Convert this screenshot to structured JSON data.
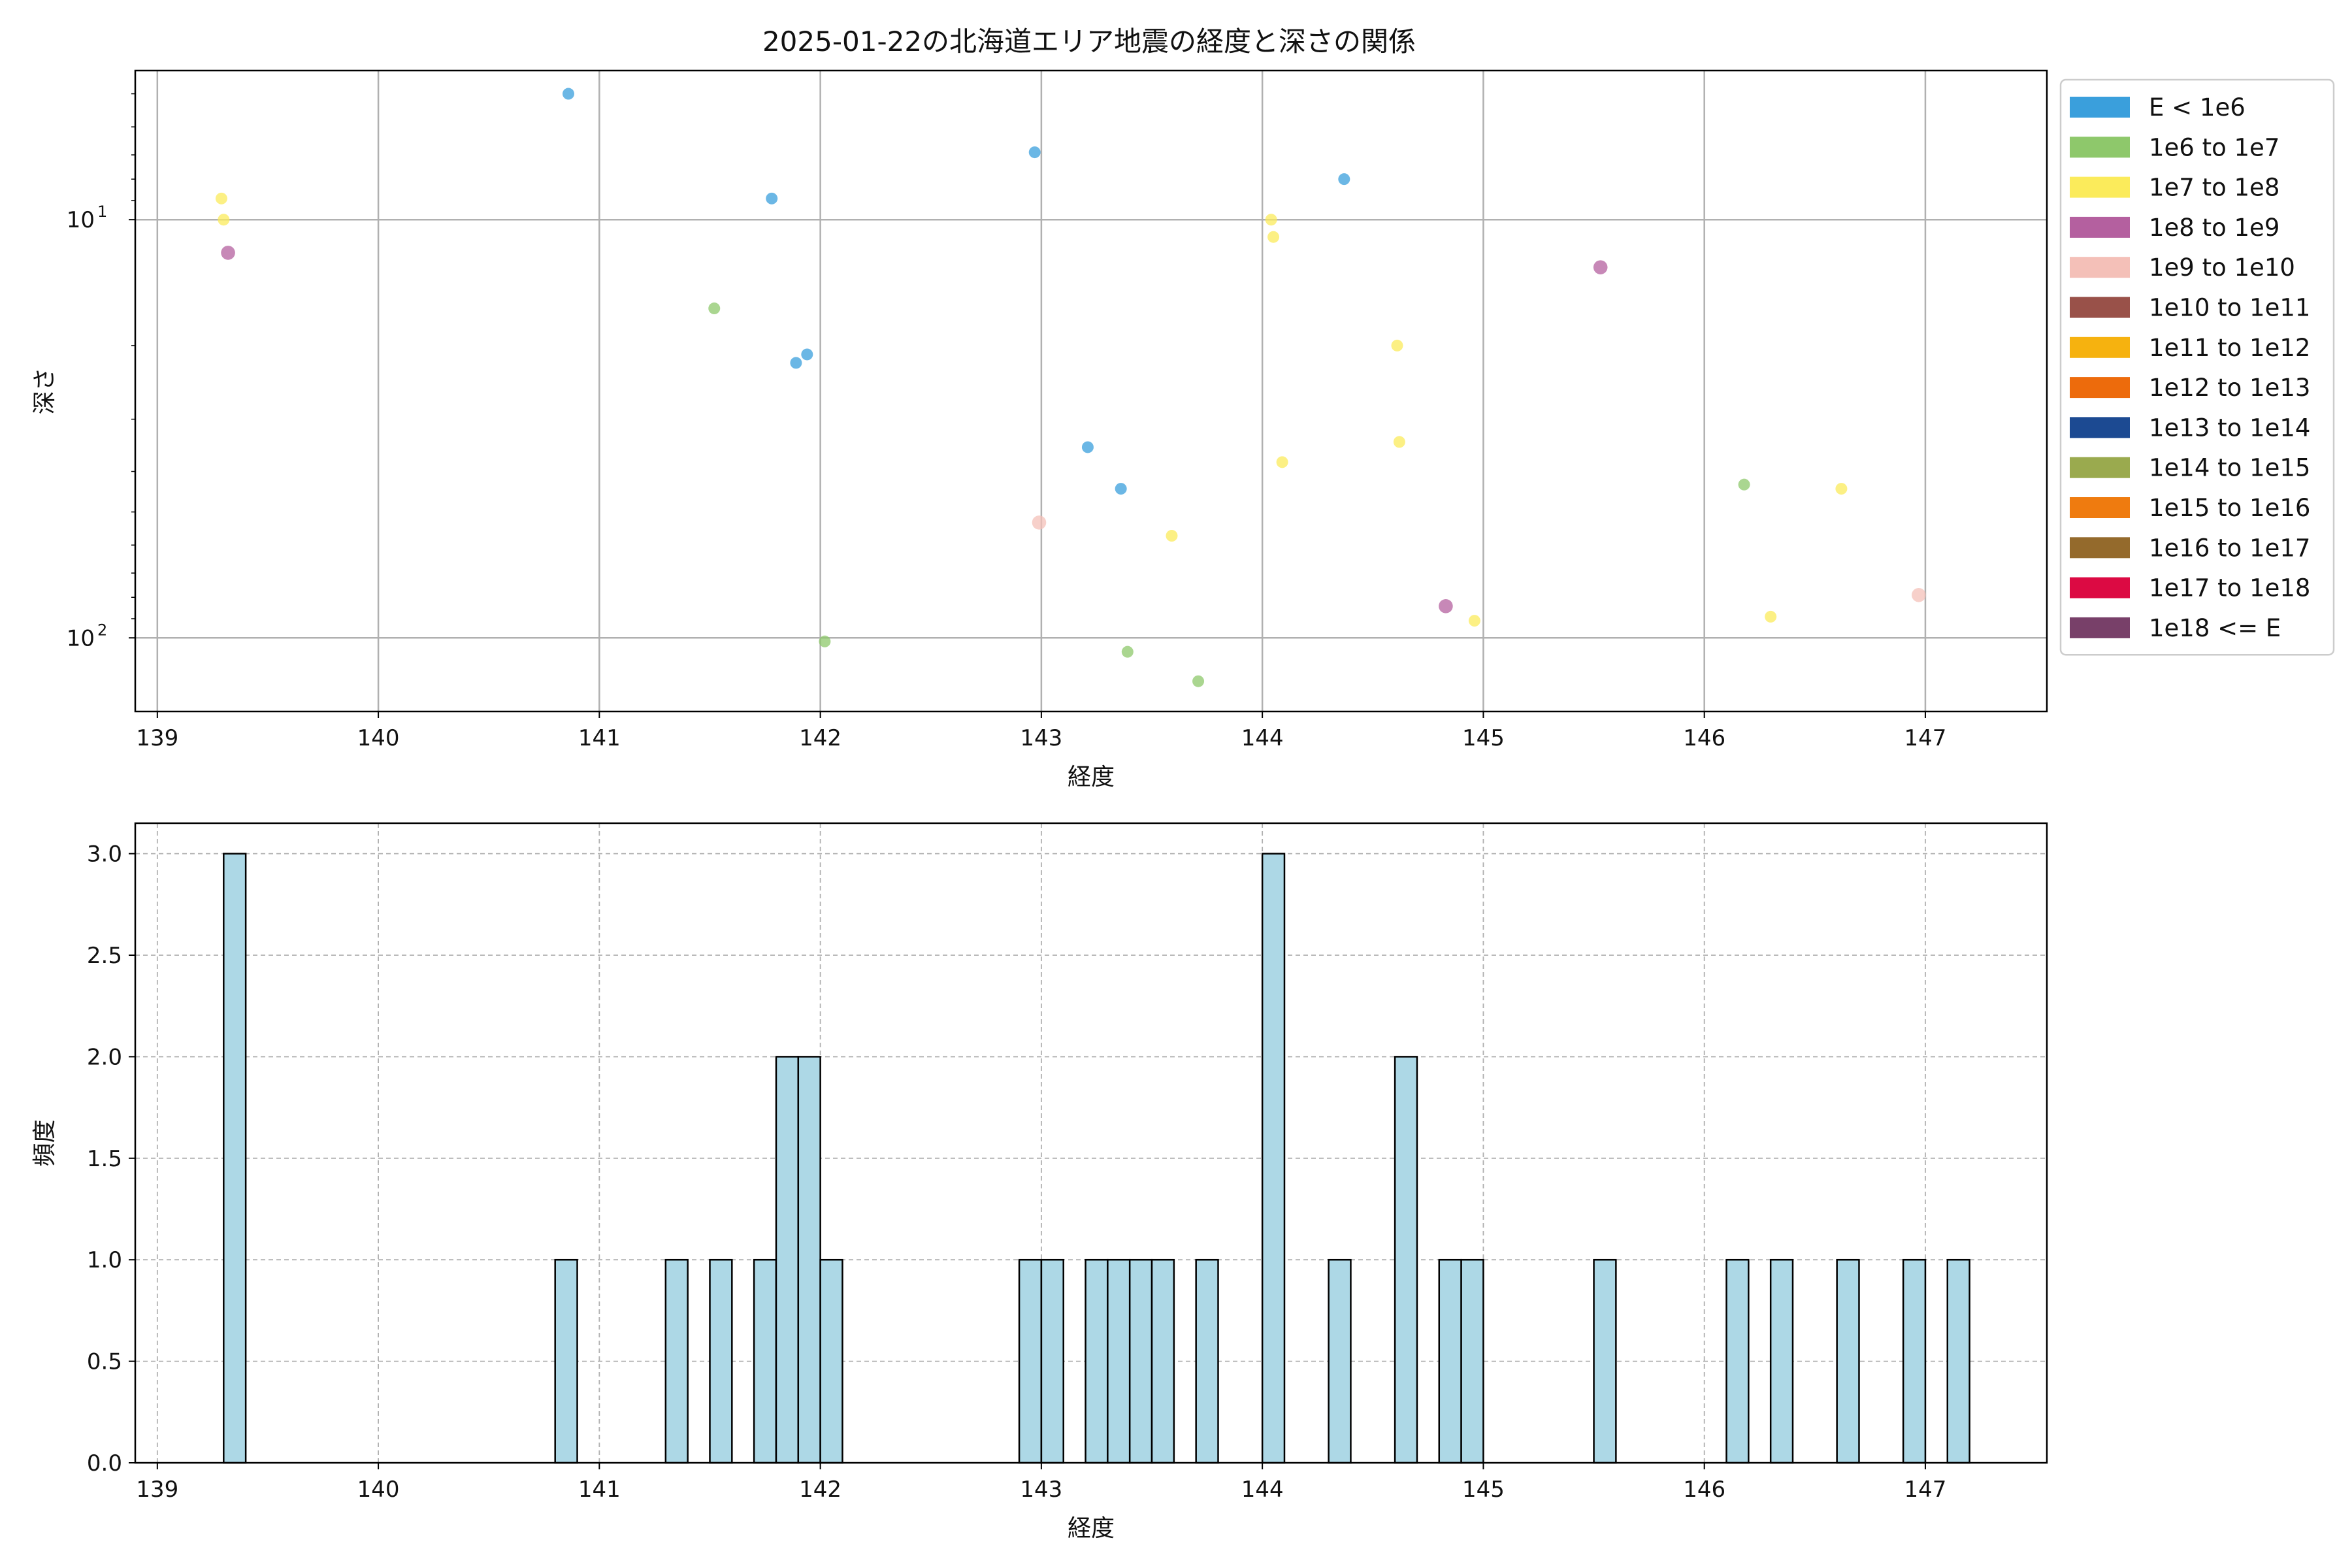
{
  "figure": {
    "title": "2025-01-22の北海道エリア地震の経度と深さの関係"
  },
  "chart_data": [
    {
      "type": "scatter",
      "title": "2025-01-22の北海道エリア地震の経度と深さの関係",
      "xlabel": "経度",
      "ylabel": "深さ",
      "xlim": [
        138.9,
        147.55
      ],
      "ylim": [
        150,
        4.4
      ],
      "y_scale": "log",
      "y_inverted": true,
      "grid": true,
      "legend_placement": "outside-right",
      "x_ticks": [
        "139",
        "140",
        "141",
        "142",
        "143",
        "144",
        "145",
        "146",
        "147"
      ],
      "y_ticks": [
        {
          "value": 10,
          "base": "10",
          "exp": "1"
        },
        {
          "value": 100,
          "base": "10",
          "exp": "2"
        }
      ],
      "legend": [
        {
          "label": "E < 1e6",
          "color": "#3a9fdc"
        },
        {
          "label": "1e6 to 1e7",
          "color": "#8ec86b"
        },
        {
          "label": "1e7 to 1e8",
          "color": "#fbeb5b"
        },
        {
          "label": "1e8 to 1e9",
          "color": "#b4609f"
        },
        {
          "label": "1e9 to 1e10",
          "color": "#f4c0b8"
        },
        {
          "label": "1e10 to 1e11",
          "color": "#995149"
        },
        {
          "label": "1e11 to 1e12",
          "color": "#f6b20f"
        },
        {
          "label": "1e12 to 1e13",
          "color": "#ed6b0c"
        },
        {
          "label": "1e13 to 1e14",
          "color": "#1c4a92"
        },
        {
          "label": "1e14 to 1e15",
          "color": "#9aaa4e"
        },
        {
          "label": "1e15 to 1e16",
          "color": "#ef7b0f"
        },
        {
          "label": "1e16 to 1e17",
          "color": "#946a2c"
        },
        {
          "label": "1e17 to 1e18",
          "color": "#dc0a43"
        },
        {
          "label": "1e18 <= E",
          "color": "#784069"
        }
      ],
      "points": [
        {
          "x": 139.29,
          "y": 8.9,
          "color": "#fbeb5b",
          "r": 5
        },
        {
          "x": 139.3,
          "y": 10.0,
          "color": "#fbeb5b",
          "r": 5
        },
        {
          "x": 139.32,
          "y": 12.0,
          "color": "#b4609f",
          "r": 6
        },
        {
          "x": 140.86,
          "y": 5.0,
          "color": "#3a9fdc",
          "r": 5
        },
        {
          "x": 141.52,
          "y": 16.3,
          "color": "#8ec86b",
          "r": 5
        },
        {
          "x": 141.78,
          "y": 8.9,
          "color": "#3a9fdc",
          "r": 5
        },
        {
          "x": 141.89,
          "y": 22.0,
          "color": "#3a9fdc",
          "r": 5
        },
        {
          "x": 141.94,
          "y": 21.0,
          "color": "#3a9fdc",
          "r": 5
        },
        {
          "x": 142.02,
          "y": 102.0,
          "color": "#8ec86b",
          "r": 5
        },
        {
          "x": 142.97,
          "y": 6.9,
          "color": "#3a9fdc",
          "r": 5
        },
        {
          "x": 142.99,
          "y": 53.0,
          "color": "#f4c0b8",
          "r": 6
        },
        {
          "x": 143.21,
          "y": 35.0,
          "color": "#3a9fdc",
          "r": 5
        },
        {
          "x": 143.36,
          "y": 44.0,
          "color": "#3a9fdc",
          "r": 5
        },
        {
          "x": 143.39,
          "y": 108.0,
          "color": "#8ec86b",
          "r": 5
        },
        {
          "x": 143.59,
          "y": 57.0,
          "color": "#fbeb5b",
          "r": 5
        },
        {
          "x": 143.71,
          "y": 127.0,
          "color": "#8ec86b",
          "r": 5
        },
        {
          "x": 144.04,
          "y": 10.0,
          "color": "#fbeb5b",
          "r": 5
        },
        {
          "x": 144.05,
          "y": 11.0,
          "color": "#fbeb5b",
          "r": 5
        },
        {
          "x": 144.09,
          "y": 38.0,
          "color": "#fbeb5b",
          "r": 5
        },
        {
          "x": 144.37,
          "y": 8.0,
          "color": "#3a9fdc",
          "r": 5
        },
        {
          "x": 144.61,
          "y": 20.0,
          "color": "#fbeb5b",
          "r": 5
        },
        {
          "x": 144.62,
          "y": 34.0,
          "color": "#fbeb5b",
          "r": 5
        },
        {
          "x": 144.83,
          "y": 84.0,
          "color": "#b4609f",
          "r": 6
        },
        {
          "x": 144.96,
          "y": 91.0,
          "color": "#fbeb5b",
          "r": 5
        },
        {
          "x": 145.53,
          "y": 13.0,
          "color": "#b4609f",
          "r": 6
        },
        {
          "x": 146.18,
          "y": 43.0,
          "color": "#8ec86b",
          "r": 5
        },
        {
          "x": 146.3,
          "y": 89.0,
          "color": "#fbeb5b",
          "r": 5
        },
        {
          "x": 146.62,
          "y": 44.0,
          "color": "#fbeb5b",
          "r": 5
        },
        {
          "x": 146.97,
          "y": 79.0,
          "color": "#f4c0b8",
          "r": 6
        }
      ]
    },
    {
      "type": "bar",
      "subtype": "histogram",
      "xlabel": "経度",
      "ylabel": "頻度",
      "xlim": [
        138.9,
        147.55
      ],
      "ylim": [
        0,
        3.15
      ],
      "bin_width": 0.1,
      "grid": true,
      "bar_color": "#add8e6",
      "x_ticks": [
        "139",
        "140",
        "141",
        "142",
        "143",
        "144",
        "145",
        "146",
        "147"
      ],
      "y_ticks": [
        "0.0",
        "0.5",
        "1.0",
        "1.5",
        "2.0",
        "2.5",
        "3.0"
      ],
      "bins": [
        {
          "start": 139.3,
          "count": 3
        },
        {
          "start": 140.8,
          "count": 1
        },
        {
          "start": 141.3,
          "count": 1
        },
        {
          "start": 141.5,
          "count": 1
        },
        {
          "start": 141.7,
          "count": 1
        },
        {
          "start": 141.8,
          "count": 2
        },
        {
          "start": 141.9,
          "count": 2
        },
        {
          "start": 142.0,
          "count": 1
        },
        {
          "start": 142.9,
          "count": 1
        },
        {
          "start": 143.0,
          "count": 1
        },
        {
          "start": 143.2,
          "count": 1
        },
        {
          "start": 143.3,
          "count": 1
        },
        {
          "start": 143.4,
          "count": 1
        },
        {
          "start": 143.5,
          "count": 1
        },
        {
          "start": 143.7,
          "count": 1
        },
        {
          "start": 144.0,
          "count": 3
        },
        {
          "start": 144.3,
          "count": 1
        },
        {
          "start": 144.6,
          "count": 2
        },
        {
          "start": 144.8,
          "count": 1
        },
        {
          "start": 144.9,
          "count": 1
        },
        {
          "start": 145.5,
          "count": 1
        },
        {
          "start": 146.1,
          "count": 1
        },
        {
          "start": 146.3,
          "count": 1
        },
        {
          "start": 146.6,
          "count": 1
        },
        {
          "start": 146.9,
          "count": 1
        },
        {
          "start": 147.1,
          "count": 1
        }
      ]
    }
  ]
}
